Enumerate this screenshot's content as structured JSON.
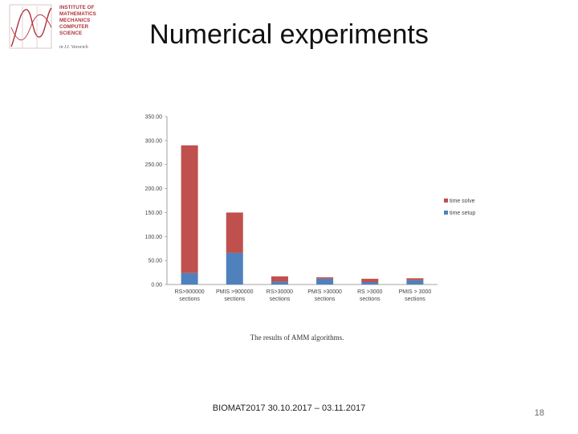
{
  "slide": {
    "title": "Numerical experiments",
    "caption": "The results of AMM algorithms.",
    "footer": "BIOMAT2017   30.10.2017 – 03.11.2017",
    "page_number": "18"
  },
  "logo": {
    "lines": [
      "INSTITUTE OF",
      "MATHEMATICS",
      "MECHANICS",
      "COMPUTER",
      "SCIENCE"
    ],
    "sub": "in I.I. Vorovich"
  },
  "colors": {
    "time_setup": "#4f81bd",
    "time_solve": "#c0504d",
    "axis": "#888888"
  },
  "chart_data": {
    "type": "bar",
    "stacked": true,
    "categories": [
      "RS>900000 sections",
      "PMIS >900000 sections",
      "RS>30000 sections",
      "PMIS >30000 sections",
      "RS >3000 sections",
      "PMIS > 3000 sections"
    ],
    "series": [
      {
        "name": "time setup",
        "values": [
          24,
          66,
          6,
          12,
          5,
          9
        ]
      },
      {
        "name": "time solve",
        "values": [
          266,
          84,
          11,
          3,
          7,
          4
        ]
      }
    ],
    "ylim": [
      0,
      350
    ],
    "yticks": [
      "0.00",
      "50.00",
      "100.00",
      "150.00",
      "200.00",
      "250.00",
      "300.00",
      "350.00"
    ],
    "legend": [
      {
        "name": "time solve"
      },
      {
        "name": "time setup"
      }
    ],
    "legend_position": "right",
    "grid": false
  }
}
